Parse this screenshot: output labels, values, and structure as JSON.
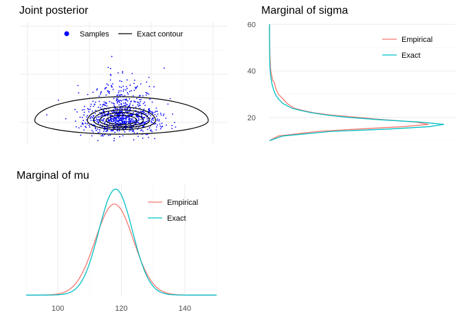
{
  "colors": {
    "empirical": "#F8766D",
    "exact": "#00BFC4",
    "samples": "#0000FF",
    "contour": "#000000"
  },
  "chart_data": [
    {
      "id": "joint",
      "type": "scatter",
      "title": "Joint posterior",
      "xlim": [
        85,
        152
      ],
      "ylim": [
        8,
        62
      ],
      "legend": {
        "position": "top",
        "entries": [
          "Samples",
          "Exact contour"
        ]
      },
      "grid": true,
      "center": [
        118,
        18.5
      ],
      "contour_levels": [
        {
          "rx": 28,
          "ry_up": 10.5,
          "ry_down": 6
        },
        {
          "rx": 11,
          "ry_up": 6,
          "ry_down": 4
        },
        {
          "rx": 9,
          "ry_up": 4.7,
          "ry_down": 3.2
        },
        {
          "rx": 7,
          "ry_up": 3.5,
          "ry_down": 2.5
        },
        {
          "rx": 5,
          "ry_up": 2.3,
          "ry_down": 1.7
        }
      ],
      "sample_count": 900
    },
    {
      "id": "sigma",
      "type": "line",
      "title": "Marginal of sigma",
      "orientation": "vertical",
      "ylim": [
        9,
        61
      ],
      "yticks": [
        20,
        40,
        60
      ],
      "legend": {
        "position": "top-right",
        "entries": [
          "Empirical",
          "Exact"
        ]
      },
      "grid": true,
      "series": [
        {
          "name": "Empirical",
          "y": [
            10,
            12,
            14,
            15,
            16,
            17,
            18,
            19,
            20,
            21,
            22,
            23,
            24,
            26,
            28,
            30,
            32,
            34,
            35,
            36,
            38,
            39,
            40,
            42,
            44,
            48,
            52,
            56,
            60
          ],
          "density": [
            0,
            0.02,
            0.11,
            0.2,
            0.3,
            0.36,
            0.33,
            0.26,
            0.2,
            0.14,
            0.1,
            0.075,
            0.055,
            0.04,
            0.03,
            0.02,
            0.015,
            0.012,
            0.011,
            0.007,
            0.005,
            0.004,
            0.003,
            0.002,
            0.0015,
            0.0008,
            0.0004,
            0.0002,
            0
          ]
        },
        {
          "name": "Exact",
          "y": [
            10,
            12,
            14,
            15,
            16,
            17,
            18,
            19,
            20,
            21,
            22,
            23,
            24,
            26,
            28,
            30,
            32,
            34,
            36,
            38,
            40,
            42,
            44,
            48,
            52,
            56,
            60
          ],
          "density": [
            0,
            0.03,
            0.14,
            0.27,
            0.36,
            0.395,
            0.34,
            0.25,
            0.18,
            0.13,
            0.095,
            0.07,
            0.05,
            0.03,
            0.02,
            0.013,
            0.009,
            0.006,
            0.004,
            0.0025,
            0.0015,
            0.001,
            0.0007,
            0.0003,
            0.0001,
            5e-05,
            0
          ]
        }
      ]
    },
    {
      "id": "mu",
      "type": "line",
      "title": "Marginal of mu",
      "xlim": [
        90,
        150
      ],
      "xticks": [
        100,
        120,
        140
      ],
      "legend": {
        "position": "top-right",
        "entries": [
          "Empirical",
          "Exact"
        ]
      },
      "grid": true,
      "series": [
        {
          "name": "Empirical",
          "mean": 117.8,
          "sd": 6.0,
          "peak": 0.067
        },
        {
          "name": "Exact",
          "mean": 118.2,
          "sd": 5.3,
          "peak": 0.078
        }
      ],
      "density_max": 0.082
    }
  ]
}
